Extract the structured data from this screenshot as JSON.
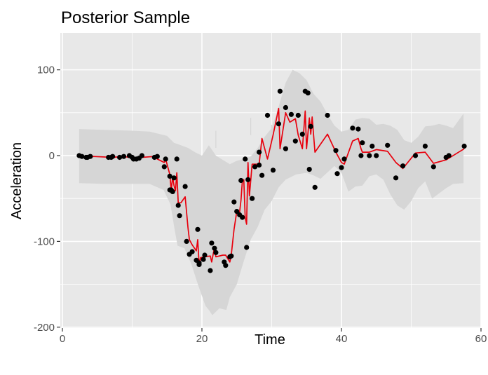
{
  "chart_data": {
    "type": "scatter",
    "title": "Posterior Sample",
    "xlabel": "Time",
    "ylabel": "Acceleration",
    "xlim": [
      -0.3,
      60.0
    ],
    "ylim": [
      -201,
      143
    ],
    "xticks": [
      0,
      20,
      40,
      60
    ],
    "xtick_labels": [
      "0",
      "20",
      "40",
      "60"
    ],
    "yticks": [
      -200,
      -100,
      0,
      100
    ],
    "ytick_labels": [
      "-200",
      "-100",
      "0",
      "100"
    ],
    "grid": true,
    "legend": "none",
    "colors": {
      "panel": "#e8e8e8",
      "grid": "#ffffff",
      "band": "#d6d6d6",
      "points": "#000000",
      "line": "#e8000d"
    },
    "band_lower": [
      [
        2.4,
        -32
      ],
      [
        6,
        -33
      ],
      [
        10,
        -33
      ],
      [
        12.5,
        -33
      ],
      [
        14.5,
        -40
      ],
      [
        15.5,
        -57
      ],
      [
        16,
        -82
      ],
      [
        16.5,
        -105
      ],
      [
        17.5,
        -108
      ],
      [
        18.5,
        -127
      ],
      [
        19.5,
        -152
      ],
      [
        20.5,
        -175
      ],
      [
        21,
        -180
      ],
      [
        21.5,
        -186
      ],
      [
        22.5,
        -178
      ],
      [
        23.5,
        -180
      ],
      [
        24,
        -165
      ],
      [
        25,
        -150
      ],
      [
        26,
        -123
      ],
      [
        27,
        -98
      ],
      [
        28,
        -83
      ],
      [
        29,
        -63
      ],
      [
        30,
        -53
      ],
      [
        31,
        -37
      ],
      [
        32,
        -28
      ],
      [
        33.5,
        -22
      ],
      [
        35,
        -20
      ],
      [
        36,
        -23
      ],
      [
        37,
        -27
      ],
      [
        39,
        -12
      ],
      [
        40,
        -20
      ],
      [
        41,
        -42
      ],
      [
        42,
        -36
      ],
      [
        43,
        -35
      ],
      [
        44,
        -24
      ],
      [
        45,
        -22
      ],
      [
        46,
        -28
      ],
      [
        47,
        -45
      ],
      [
        48,
        -58
      ],
      [
        49,
        -63
      ],
      [
        50,
        -53
      ],
      [
        51,
        -38
      ],
      [
        52,
        -30
      ],
      [
        53,
        -50
      ],
      [
        54,
        -44
      ],
      [
        55,
        -38
      ],
      [
        56,
        -33
      ],
      [
        57.5,
        -32
      ]
    ],
    "band_upper": [
      [
        2.4,
        31
      ],
      [
        6,
        30
      ],
      [
        10,
        29
      ],
      [
        12.5,
        28
      ],
      [
        14,
        25
      ],
      [
        15,
        23
      ],
      [
        16,
        15
      ],
      [
        17,
        12
      ],
      [
        18,
        9
      ],
      [
        19,
        4
      ],
      [
        20,
        0
      ],
      [
        21,
        12
      ],
      [
        22,
        0
      ],
      [
        23,
        -5
      ],
      [
        24,
        -10
      ],
      [
        25,
        -6
      ],
      [
        26,
        -4
      ],
      [
        27,
        -1
      ],
      [
        28,
        9
      ],
      [
        29,
        22
      ],
      [
        30,
        32
      ],
      [
        31,
        57
      ],
      [
        32,
        85
      ],
      [
        33,
        100
      ],
      [
        34,
        96
      ],
      [
        35,
        88
      ],
      [
        36,
        72
      ],
      [
        37,
        63
      ],
      [
        38,
        48
      ],
      [
        39,
        35
      ],
      [
        40,
        28
      ],
      [
        41,
        30
      ],
      [
        42,
        42
      ],
      [
        43,
        44
      ],
      [
        44,
        43
      ],
      [
        45,
        36
      ],
      [
        46,
        37
      ],
      [
        47,
        35
      ],
      [
        48,
        30
      ],
      [
        49,
        18
      ],
      [
        50,
        15
      ],
      [
        51,
        22
      ],
      [
        52,
        34
      ],
      [
        53,
        35
      ],
      [
        54,
        37
      ],
      [
        55,
        35
      ],
      [
        56,
        32
      ],
      [
        57.5,
        49
      ]
    ],
    "band_spikes": [
      [
        6,
        0
      ],
      [
        22,
        29
      ],
      [
        27,
        44
      ],
      [
        30,
        36
      ]
    ],
    "series": [
      {
        "name": "",
        "type": "scatter",
        "x": [
          2.4,
          2.8,
          3.4,
          3.6,
          4.0,
          6.6,
          7.0,
          7.2,
          8.2,
          8.8,
          9.6,
          10.0,
          10.2,
          10.6,
          11.0,
          11.4,
          13.2,
          13.6,
          14.6,
          14.8,
          15.4,
          15.4,
          15.6,
          15.8,
          16.0,
          16.4,
          16.6,
          16.8,
          17.6,
          17.8,
          18.2,
          18.6,
          19.2,
          19.4,
          19.6,
          19.6,
          20.2,
          20.4,
          21.2,
          21.4,
          21.8,
          22.0,
          23.2,
          23.4,
          24.0,
          24.2,
          24.6,
          25.0,
          25.4,
          25.6,
          25.8,
          26.2,
          26.4,
          26.6,
          27.2,
          27.6,
          28.2,
          28.2,
          28.6,
          29.4,
          30.2,
          31.0,
          31.2,
          32.0,
          32.0,
          32.8,
          33.4,
          33.8,
          34.4,
          34.8,
          35.2,
          35.4,
          35.6,
          36.2,
          38.0,
          39.2,
          39.4,
          40.0,
          40.4,
          41.6,
          42.4,
          42.8,
          43.0,
          44.0,
          44.4,
          45.0,
          46.6,
          47.8,
          48.8,
          50.6,
          52.0,
          53.2,
          55.0,
          55.4,
          57.6
        ],
        "y": [
          0,
          -1,
          -2,
          -2,
          -1,
          -2,
          -2,
          -1,
          -2,
          -1,
          0,
          -2,
          -4,
          -4,
          -3,
          0,
          -2,
          -1,
          -13,
          -4,
          -24,
          -40,
          -40,
          -42,
          -26,
          -4,
          -58,
          -70,
          -36,
          -100,
          -115,
          -112,
          -122,
          -86,
          -127,
          -125,
          -121,
          -116,
          -134,
          -102,
          -108,
          -113,
          -124,
          -128,
          -118,
          -117,
          -54,
          -65,
          -69,
          -29,
          -72,
          -4,
          -107,
          -28,
          -50,
          -13,
          -11,
          4,
          -23,
          47,
          -17,
          37,
          75,
          8,
          56,
          48,
          17,
          47,
          25,
          75,
          73,
          -16,
          34,
          -37,
          47,
          6,
          -21,
          -14,
          -4,
          32,
          31,
          0,
          15,
          0,
          11,
          0,
          12,
          -26,
          -12,
          0,
          11,
          -13,
          -2,
          0,
          11
        ]
      },
      {
        "name": "",
        "type": "line",
        "points": [
          [
            2.4,
            0
          ],
          [
            3.0,
            -1
          ],
          [
            3.6,
            -2
          ],
          [
            4.4,
            -1
          ],
          [
            7.2,
            -2
          ],
          [
            8.8,
            -1
          ],
          [
            10.2,
            -3
          ],
          [
            11.4,
            -2
          ],
          [
            13.2,
            -1
          ],
          [
            13.6,
            -4
          ],
          [
            14.6,
            -8
          ],
          [
            14.8,
            -4
          ],
          [
            15.4,
            -22
          ],
          [
            15.6,
            -40
          ],
          [
            15.8,
            -25
          ],
          [
            16.0,
            -35
          ],
          [
            16.2,
            -41
          ],
          [
            16.4,
            -20
          ],
          [
            16.6,
            -55
          ],
          [
            17.0,
            -55
          ],
          [
            17.6,
            -48
          ],
          [
            18.0,
            -84
          ],
          [
            18.2,
            -98
          ],
          [
            18.6,
            -104
          ],
          [
            19.2,
            -111
          ],
          [
            19.4,
            -98
          ],
          [
            19.6,
            -127
          ],
          [
            19.8,
            -119
          ],
          [
            20.4,
            -118
          ],
          [
            21.2,
            -117
          ],
          [
            21.4,
            -124
          ],
          [
            21.8,
            -107
          ],
          [
            22.0,
            -118
          ],
          [
            23.0,
            -116
          ],
          [
            23.4,
            -116
          ],
          [
            24.0,
            -124
          ],
          [
            24.2,
            -116
          ],
          [
            24.6,
            -86
          ],
          [
            25.0,
            -65
          ],
          [
            25.4,
            -66
          ],
          [
            25.6,
            -52
          ],
          [
            25.8,
            -29
          ],
          [
            26.0,
            -28
          ],
          [
            26.2,
            -72
          ],
          [
            26.4,
            -80
          ],
          [
            26.6,
            -8
          ],
          [
            26.8,
            -47
          ],
          [
            27.2,
            -10
          ],
          [
            28.2,
            -10
          ],
          [
            28.6,
            20
          ],
          [
            29.4,
            -4
          ],
          [
            30.2,
            24
          ],
          [
            31.0,
            55
          ],
          [
            31.2,
            8
          ],
          [
            32.0,
            50
          ],
          [
            32.6,
            39
          ],
          [
            33.4,
            43
          ],
          [
            33.8,
            24
          ],
          [
            34.4,
            8
          ],
          [
            34.8,
            52
          ],
          [
            35.0,
            8
          ],
          [
            35.4,
            44
          ],
          [
            35.6,
            25
          ],
          [
            35.8,
            45
          ],
          [
            36.2,
            4
          ],
          [
            38.0,
            25
          ],
          [
            39.2,
            4
          ],
          [
            40.0,
            -8
          ],
          [
            40.4,
            -10
          ],
          [
            41.6,
            17
          ],
          [
            42.4,
            20
          ],
          [
            42.8,
            8
          ],
          [
            43.0,
            4
          ],
          [
            44.0,
            4
          ],
          [
            45.0,
            7
          ],
          [
            46.6,
            5
          ],
          [
            47.8,
            -8
          ],
          [
            48.8,
            -15
          ],
          [
            50.6,
            3
          ],
          [
            52.0,
            4
          ],
          [
            53.2,
            -9
          ],
          [
            55.0,
            -5
          ],
          [
            55.4,
            -3
          ],
          [
            57.6,
            8
          ]
        ]
      }
    ]
  }
}
